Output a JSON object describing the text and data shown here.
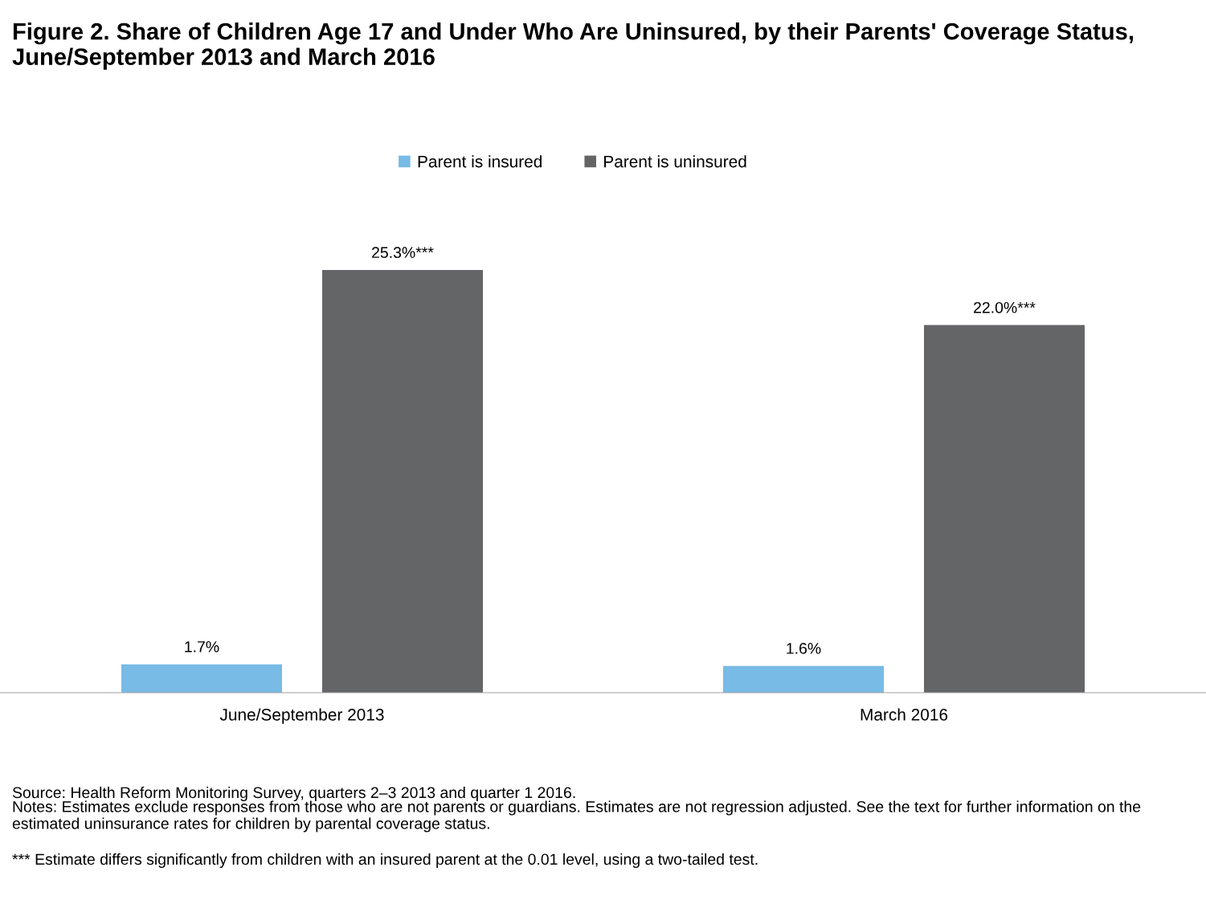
{
  "chart_data": {
    "type": "bar",
    "title": "Figure 2. Share of Children Age 17 and Under Who Are Uninsured, by their Parents' Coverage Status, June/September 2013 and March 2016",
    "categories": [
      "June/September 2013",
      "March 2016"
    ],
    "series": [
      {
        "name": "Parent is insured",
        "color": "#77bbe6",
        "values": [
          1.7,
          1.6
        ],
        "value_labels": [
          "1.7%",
          "1.6%"
        ]
      },
      {
        "name": "Parent is uninsured",
        "color": "#646567",
        "values": [
          25.3,
          22.0
        ],
        "value_labels": [
          "25.3%***",
          "22.0%***"
        ]
      }
    ],
    "legend": "top",
    "grid": false,
    "annotations": [
      "Source: Health Reform Monitoring Survey, quarters 2–3 2013 and quarter 1 2016.",
      "Notes: Estimates exclude responses from those who are not parents or guardians. Estimates are not regression adjusted. See the text for further information on the estimated uninsurance rates for children by parental coverage status.",
      "*** Estimate differs significantly from children with an insured parent at the 0.01 level, using a two-tailed test."
    ]
  }
}
